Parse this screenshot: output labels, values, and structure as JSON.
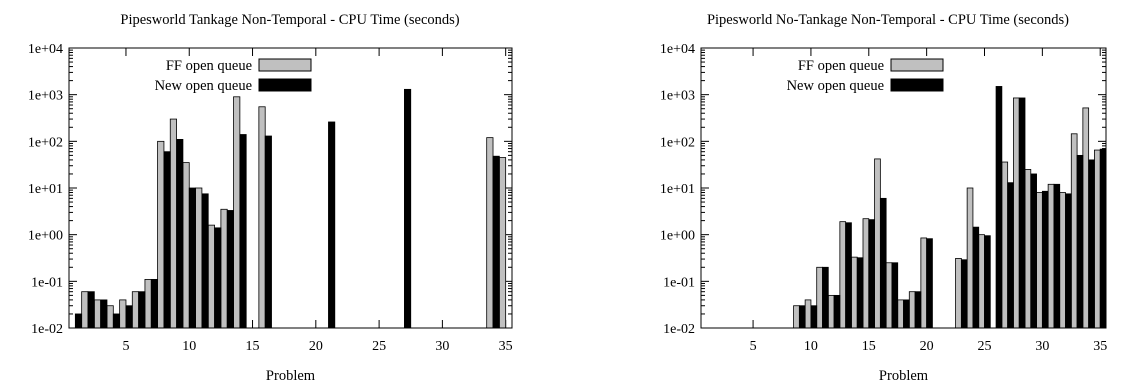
{
  "chart_data": [
    {
      "type": "bar",
      "title": "Pipesworld Tankage Non-Temporal - CPU Time (seconds)",
      "xlabel": "Problem",
      "ylabel": "",
      "yscale": "log",
      "ylim": [
        0.01,
        10000
      ],
      "xlim": [
        0.5,
        35.5
      ],
      "xticks": [
        5,
        10,
        15,
        20,
        25,
        30,
        35
      ],
      "yticks": [
        "1e-02",
        "1e-01",
        "1e+00",
        "1e+01",
        "1e+02",
        "1e+03",
        "1e+04"
      ],
      "legend_position": "top-left",
      "categories": [
        1,
        2,
        3,
        4,
        5,
        6,
        7,
        8,
        9,
        10,
        11,
        12,
        13,
        14,
        15,
        16,
        17,
        18,
        19,
        20,
        21,
        22,
        23,
        24,
        25,
        26,
        27,
        28,
        29,
        30,
        31,
        32,
        33,
        34,
        35
      ],
      "series": [
        {
          "name": "FF open queue",
          "color": "#c0c0c0",
          "values": [
            null,
            0.06,
            0.04,
            0.03,
            0.04,
            0.06,
            0.11,
            100,
            300,
            35,
            10,
            1.6,
            3.5,
            900,
            null,
            550,
            null,
            null,
            null,
            null,
            null,
            null,
            null,
            null,
            null,
            null,
            null,
            null,
            null,
            null,
            null,
            null,
            null,
            120,
            45
          ]
        },
        {
          "name": "New open queue",
          "color": "#000000",
          "values": [
            0.02,
            0.06,
            0.04,
            0.02,
            0.03,
            0.06,
            0.11,
            60,
            110,
            10,
            7.5,
            1.4,
            3.3,
            140,
            null,
            130,
            null,
            null,
            null,
            null,
            260,
            null,
            null,
            null,
            null,
            null,
            1300,
            null,
            null,
            null,
            null,
            null,
            null,
            48,
            null
          ]
        }
      ]
    },
    {
      "type": "bar",
      "title": "Pipesworld No-Tankage Non-Temporal - CPU Time (seconds)",
      "xlabel": "Problem",
      "ylabel": "",
      "yscale": "log",
      "ylim": [
        0.01,
        10000
      ],
      "xlim": [
        0.5,
        35.5
      ],
      "xticks": [
        5,
        10,
        15,
        20,
        25,
        30,
        35
      ],
      "yticks": [
        "1e-02",
        "1e-01",
        "1e+00",
        "1e+01",
        "1e+02",
        "1e+03",
        "1e+04"
      ],
      "legend_position": "top-left",
      "categories": [
        1,
        2,
        3,
        4,
        5,
        6,
        7,
        8,
        9,
        10,
        11,
        12,
        13,
        14,
        15,
        16,
        17,
        18,
        19,
        20,
        21,
        22,
        23,
        24,
        25,
        26,
        27,
        28,
        29,
        30,
        31,
        32,
        33,
        34,
        35
      ],
      "series": [
        {
          "name": "FF open queue",
          "color": "#c0c0c0",
          "values": [
            null,
            null,
            null,
            null,
            null,
            null,
            null,
            null,
            0.03,
            0.04,
            0.2,
            0.05,
            1.9,
            0.33,
            2.2,
            42,
            0.25,
            0.04,
            0.06,
            0.85,
            null,
            null,
            0.31,
            10,
            1.0,
            null,
            36,
            850,
            25,
            8,
            12,
            8,
            145,
            520,
            65
          ]
        },
        {
          "name": "New open queue",
          "color": "#000000",
          "values": [
            null,
            null,
            null,
            null,
            null,
            null,
            null,
            null,
            0.03,
            0.03,
            0.2,
            0.05,
            1.8,
            0.32,
            2.1,
            6,
            0.25,
            0.04,
            0.06,
            0.82,
            null,
            null,
            0.29,
            1.45,
            0.95,
            1500,
            13,
            850,
            20,
            8.5,
            12,
            7.5,
            50,
            40,
            68
          ]
        }
      ]
    }
  ]
}
